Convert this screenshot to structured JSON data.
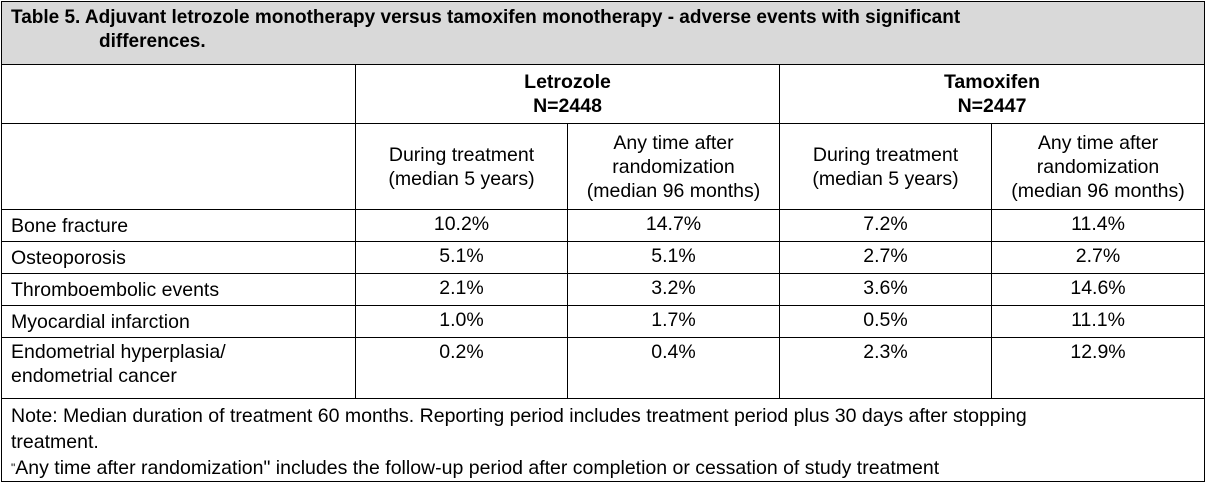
{
  "title": {
    "line1": "Table 5. Adjuvant letrozole monotherapy versus tamoxifen monotherapy - adverse events with significant",
    "line2": "differences."
  },
  "groups": [
    {
      "name": "Letrozole",
      "n": "N=2448"
    },
    {
      "name": "Tamoxifen",
      "n": "N=2447"
    }
  ],
  "subheaders": [
    [
      "During treatment",
      "(median 5 years)"
    ],
    [
      "Any time after",
      "randomization",
      "(median 96 months)"
    ],
    [
      "During treatment",
      "(median 5 years)"
    ],
    [
      "Any time after",
      "randomization",
      "(median 96 months)"
    ]
  ],
  "rows": [
    {
      "label": [
        "Bone fracture"
      ],
      "values": [
        "10.2%",
        "14.7%",
        "7.2%",
        "11.4%"
      ]
    },
    {
      "label": [
        "Osteoporosis"
      ],
      "values": [
        "5.1%",
        "5.1%",
        "2.7%",
        "2.7%"
      ]
    },
    {
      "label": [
        "Thromboembolic events"
      ],
      "values": [
        "2.1%",
        "3.2%",
        "3.6%",
        "14.6%"
      ]
    },
    {
      "label": [
        "Myocardial infarction"
      ],
      "values": [
        "1.0%",
        "1.7%",
        "0.5%",
        "11.1%"
      ]
    },
    {
      "label": [
        "Endometrial hyperplasia/",
        "endometrial cancer"
      ],
      "values": [
        "0.2%",
        "0.4%",
        "2.3%",
        "12.9%"
      ]
    }
  ],
  "notes": {
    "line1": "Note: Median duration of treatment 60 months. Reporting period includes treatment period plus 30 days after stopping",
    "line2": "treatment.",
    "line3_mark": "\"",
    "line3": "Any time after randomization\" includes the follow-up period after completion or cessation of study treatment"
  }
}
